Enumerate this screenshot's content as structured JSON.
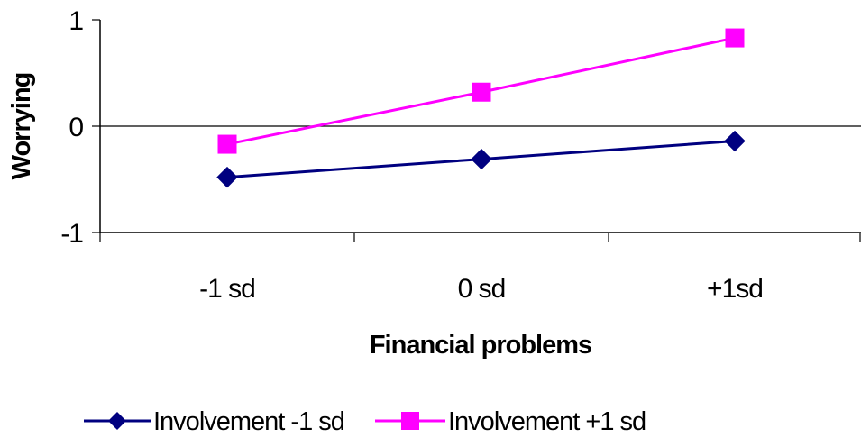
{
  "chart_data": {
    "type": "line",
    "title": "",
    "xlabel": "Financial problems",
    "ylabel": "Worrying",
    "categories": [
      "-1 sd",
      "0 sd",
      "+1sd"
    ],
    "y_ticks": [
      "1",
      "0",
      "-1"
    ],
    "ylim": [
      -1,
      1
    ],
    "grid": false,
    "legend_position": "bottom",
    "series": [
      {
        "name": "Involvement -1 sd",
        "values": [
          -0.48,
          -0.31,
          -0.14
        ],
        "color": "#000080",
        "marker": "diamond"
      },
      {
        "name": "Involvement +1 sd",
        "values": [
          -0.17,
          0.32,
          0.83
        ],
        "color": "#FF00FF",
        "marker": "square"
      }
    ]
  }
}
